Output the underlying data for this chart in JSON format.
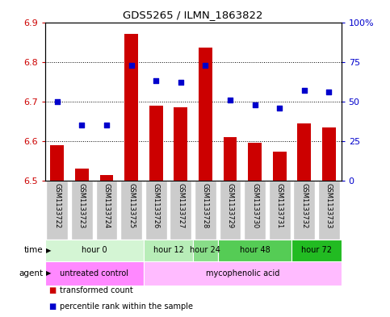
{
  "title": "GDS5265 / ILMN_1863822",
  "samples": [
    "GSM1133722",
    "GSM1133723",
    "GSM1133724",
    "GSM1133725",
    "GSM1133726",
    "GSM1133727",
    "GSM1133728",
    "GSM1133729",
    "GSM1133730",
    "GSM1133731",
    "GSM1133732",
    "GSM1133733"
  ],
  "bar_values": [
    6.59,
    6.53,
    6.515,
    6.87,
    6.69,
    6.685,
    6.835,
    6.61,
    6.595,
    6.573,
    6.645,
    6.635
  ],
  "dot_values": [
    50,
    35,
    35,
    73,
    63,
    62,
    73,
    51,
    48,
    46,
    57,
    56
  ],
  "bar_base": 6.5,
  "ylim_left": [
    6.5,
    6.9
  ],
  "ylim_right": [
    0,
    100
  ],
  "yticks_left": [
    6.5,
    6.6,
    6.7,
    6.8,
    6.9
  ],
  "yticks_right": [
    0,
    25,
    50,
    75,
    100
  ],
  "ytick_labels_right": [
    "0",
    "25",
    "50",
    "75",
    "100%"
  ],
  "bar_color": "#cc0000",
  "dot_color": "#0000cc",
  "time_groups": [
    {
      "label": "hour 0",
      "start": 0,
      "end": 3,
      "color": "#d4f5d4"
    },
    {
      "label": "hour 12",
      "start": 4,
      "end": 5,
      "color": "#b8edb8"
    },
    {
      "label": "hour 24",
      "start": 6,
      "end": 6,
      "color": "#88dd88"
    },
    {
      "label": "hour 48",
      "start": 7,
      "end": 9,
      "color": "#55cc55"
    },
    {
      "label": "hour 72",
      "start": 10,
      "end": 11,
      "color": "#22bb22"
    }
  ],
  "agent_groups": [
    {
      "label": "untreated control",
      "start": 0,
      "end": 3,
      "color": "#ff88ff"
    },
    {
      "label": "mycophenolic acid",
      "start": 4,
      "end": 11,
      "color": "#ffbbff"
    }
  ],
  "legend_items": [
    {
      "label": "transformed count",
      "color": "#cc0000"
    },
    {
      "label": "percentile rank within the sample",
      "color": "#0000cc"
    }
  ],
  "tick_label_color_left": "#cc0000",
  "tick_label_color_right": "#0000cc",
  "sample_box_color": "#cccccc",
  "sample_text_color": "#000000"
}
